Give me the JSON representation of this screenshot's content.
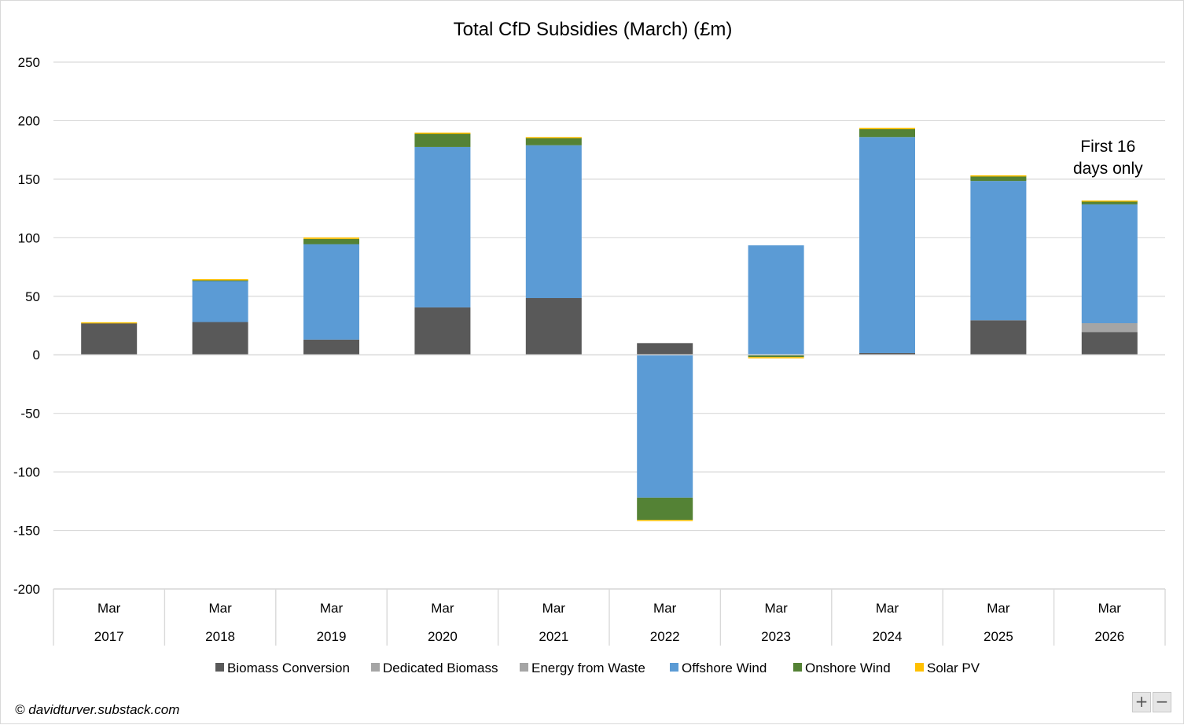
{
  "chart_data": {
    "type": "bar",
    "stacked": true,
    "title": "Total CfD Subsidies (March) (£m)",
    "xlabel": "",
    "ylabel": "",
    "ylim": [
      -200,
      250
    ],
    "yticks": [
      250,
      200,
      150,
      100,
      50,
      0,
      -50,
      -100,
      -150,
      -200
    ],
    "grid": true,
    "legend_position": "bottom",
    "categories": [
      {
        "month": "Mar",
        "year": "2017"
      },
      {
        "month": "Mar",
        "year": "2018"
      },
      {
        "month": "Mar",
        "year": "2019"
      },
      {
        "month": "Mar",
        "year": "2020"
      },
      {
        "month": "Mar",
        "year": "2021"
      },
      {
        "month": "Mar",
        "year": "2022"
      },
      {
        "month": "Mar",
        "year": "2023"
      },
      {
        "month": "Mar",
        "year": "2024"
      },
      {
        "month": "Mar",
        "year": "2025"
      },
      {
        "month": "Mar",
        "year": "2026"
      }
    ],
    "series": [
      {
        "name": "Biomass Conversion",
        "color": "#595959",
        "values": [
          27,
          28,
          13,
          40.5,
          48.5,
          10,
          0,
          1.5,
          29.5,
          19.5
        ]
      },
      {
        "name": "Dedicated Biomass",
        "color": "#a5a5a5",
        "values": [
          0,
          0,
          0,
          0,
          0,
          0,
          0,
          0,
          0,
          7.5
        ]
      },
      {
        "name": "Energy from Waste",
        "color": "#a5a5a5",
        "values": [
          0,
          0,
          0,
          0,
          0,
          0,
          -0.5,
          0,
          0,
          0
        ]
      },
      {
        "name": "Offshore Wind",
        "color": "#5b9bd5",
        "values": [
          0,
          35.5,
          81.5,
          137,
          130.5,
          -122,
          93.5,
          184.5,
          119,
          101.5
        ]
      },
      {
        "name": "Onshore Wind",
        "color": "#548235",
        "values": [
          0,
          0.5,
          4.5,
          11.5,
          6.5,
          -19,
          -1.5,
          7,
          4.5,
          3
        ]
      },
      {
        "name": "Solar PV",
        "color": "#ffc000",
        "values": [
          0.8,
          0.6,
          1.2,
          0.8,
          0.5,
          -0.6,
          -0.4,
          0.8,
          0.3,
          0.3
        ]
      }
    ],
    "annotations": [
      {
        "category": "2026",
        "text_lines": [
          "First 16",
          "days only"
        ]
      }
    ]
  },
  "footer": {
    "text": "© davidturver.substack.com"
  },
  "zoom": {
    "plus": "+",
    "minus": "−"
  }
}
